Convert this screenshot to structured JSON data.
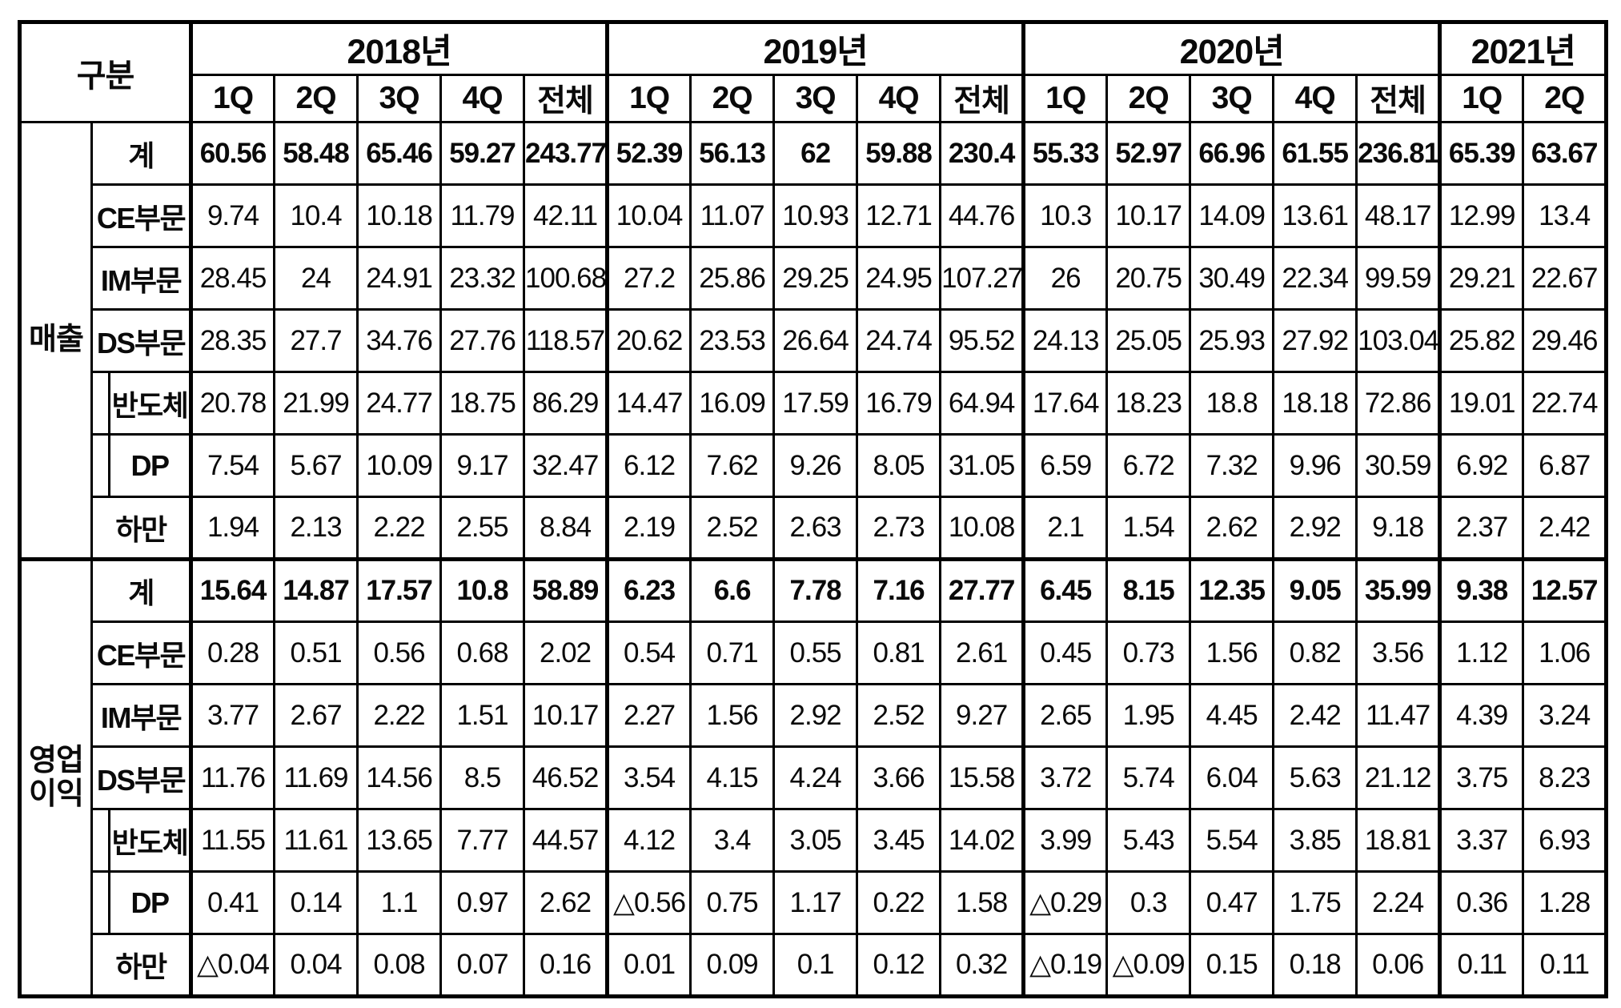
{
  "chart_data": {
    "type": "table",
    "corner_label": "구분",
    "negative_marker": "△",
    "colors": {
      "border": "#000000",
      "background": "#ffffff",
      "text": "#0a0a0a"
    },
    "years": [
      {
        "label": "2018년",
        "quarters": [
          "1Q",
          "2Q",
          "3Q",
          "4Q",
          "전체"
        ]
      },
      {
        "label": "2019년",
        "quarters": [
          "1Q",
          "2Q",
          "3Q",
          "4Q",
          "전체"
        ]
      },
      {
        "label": "2020년",
        "quarters": [
          "1Q",
          "2Q",
          "3Q",
          "4Q",
          "전체"
        ]
      },
      {
        "label": "2021년",
        "quarters": [
          "1Q",
          "2Q"
        ]
      }
    ],
    "sections": [
      {
        "name": "매출",
        "rows": [
          {
            "label": "계",
            "indent": false,
            "bold": true,
            "values": [
              "60.56",
              "58.48",
              "65.46",
              "59.27",
              "243.77",
              "52.39",
              "56.13",
              "62",
              "59.88",
              "230.4",
              "55.33",
              "52.97",
              "66.96",
              "61.55",
              "236.81",
              "65.39",
              "63.67"
            ]
          },
          {
            "label": "CE부문",
            "indent": false,
            "bold": false,
            "values": [
              "9.74",
              "10.4",
              "10.18",
              "11.79",
              "42.11",
              "10.04",
              "11.07",
              "10.93",
              "12.71",
              "44.76",
              "10.3",
              "10.17",
              "14.09",
              "13.61",
              "48.17",
              "12.99",
              "13.4"
            ]
          },
          {
            "label": "IM부문",
            "indent": false,
            "bold": false,
            "values": [
              "28.45",
              "24",
              "24.91",
              "23.32",
              "100.68",
              "27.2",
              "25.86",
              "29.25",
              "24.95",
              "107.27",
              "26",
              "20.75",
              "30.49",
              "22.34",
              "99.59",
              "29.21",
              "22.67"
            ]
          },
          {
            "label": "DS부문",
            "indent": false,
            "bold": false,
            "values": [
              "28.35",
              "27.7",
              "34.76",
              "27.76",
              "118.57",
              "20.62",
              "23.53",
              "26.64",
              "24.74",
              "95.52",
              "24.13",
              "25.05",
              "25.93",
              "27.92",
              "103.04",
              "25.82",
              "29.46"
            ]
          },
          {
            "label": "반도체",
            "indent": true,
            "bold": false,
            "values": [
              "20.78",
              "21.99",
              "24.77",
              "18.75",
              "86.29",
              "14.47",
              "16.09",
              "17.59",
              "16.79",
              "64.94",
              "17.64",
              "18.23",
              "18.8",
              "18.18",
              "72.86",
              "19.01",
              "22.74"
            ]
          },
          {
            "label": "DP",
            "indent": true,
            "bold": false,
            "values": [
              "7.54",
              "5.67",
              "10.09",
              "9.17",
              "32.47",
              "6.12",
              "7.62",
              "9.26",
              "8.05",
              "31.05",
              "6.59",
              "6.72",
              "7.32",
              "9.96",
              "30.59",
              "6.92",
              "6.87"
            ]
          },
          {
            "label": "하만",
            "indent": false,
            "bold": false,
            "values": [
              "1.94",
              "2.13",
              "2.22",
              "2.55",
              "8.84",
              "2.19",
              "2.52",
              "2.63",
              "2.73",
              "10.08",
              "2.1",
              "1.54",
              "2.62",
              "2.92",
              "9.18",
              "2.37",
              "2.42"
            ]
          }
        ]
      },
      {
        "name": "영업이익",
        "rows": [
          {
            "label": "계",
            "indent": false,
            "bold": true,
            "values": [
              "15.64",
              "14.87",
              "17.57",
              "10.8",
              "58.89",
              "6.23",
              "6.6",
              "7.78",
              "7.16",
              "27.77",
              "6.45",
              "8.15",
              "12.35",
              "9.05",
              "35.99",
              "9.38",
              "12.57"
            ]
          },
          {
            "label": "CE부문",
            "indent": false,
            "bold": false,
            "values": [
              "0.28",
              "0.51",
              "0.56",
              "0.68",
              "2.02",
              "0.54",
              "0.71",
              "0.55",
              "0.81",
              "2.61",
              "0.45",
              "0.73",
              "1.56",
              "0.82",
              "3.56",
              "1.12",
              "1.06"
            ]
          },
          {
            "label": "IM부문",
            "indent": false,
            "bold": false,
            "values": [
              "3.77",
              "2.67",
              "2.22",
              "1.51",
              "10.17",
              "2.27",
              "1.56",
              "2.92",
              "2.52",
              "9.27",
              "2.65",
              "1.95",
              "4.45",
              "2.42",
              "11.47",
              "4.39",
              "3.24"
            ]
          },
          {
            "label": "DS부문",
            "indent": false,
            "bold": false,
            "values": [
              "11.76",
              "11.69",
              "14.56",
              "8.5",
              "46.52",
              "3.54",
              "4.15",
              "4.24",
              "3.66",
              "15.58",
              "3.72",
              "5.74",
              "6.04",
              "5.63",
              "21.12",
              "3.75",
              "8.23"
            ]
          },
          {
            "label": "반도체",
            "indent": true,
            "bold": false,
            "values": [
              "11.55",
              "11.61",
              "13.65",
              "7.77",
              "44.57",
              "4.12",
              "3.4",
              "3.05",
              "3.45",
              "14.02",
              "3.99",
              "5.43",
              "5.54",
              "3.85",
              "18.81",
              "3.37",
              "6.93"
            ]
          },
          {
            "label": "DP",
            "indent": true,
            "bold": false,
            "values": [
              "0.41",
              "0.14",
              "1.1",
              "0.97",
              "2.62",
              "△0.56",
              "0.75",
              "1.17",
              "0.22",
              "1.58",
              "△0.29",
              "0.3",
              "0.47",
              "1.75",
              "2.24",
              "0.36",
              "1.28"
            ]
          },
          {
            "label": "하만",
            "indent": false,
            "bold": false,
            "values": [
              "△0.04",
              "0.04",
              "0.08",
              "0.07",
              "0.16",
              "0.01",
              "0.09",
              "0.1",
              "0.12",
              "0.32",
              "△0.19",
              "△0.09",
              "0.15",
              "0.18",
              "0.06",
              "0.11",
              "0.11"
            ]
          }
        ]
      }
    ]
  }
}
